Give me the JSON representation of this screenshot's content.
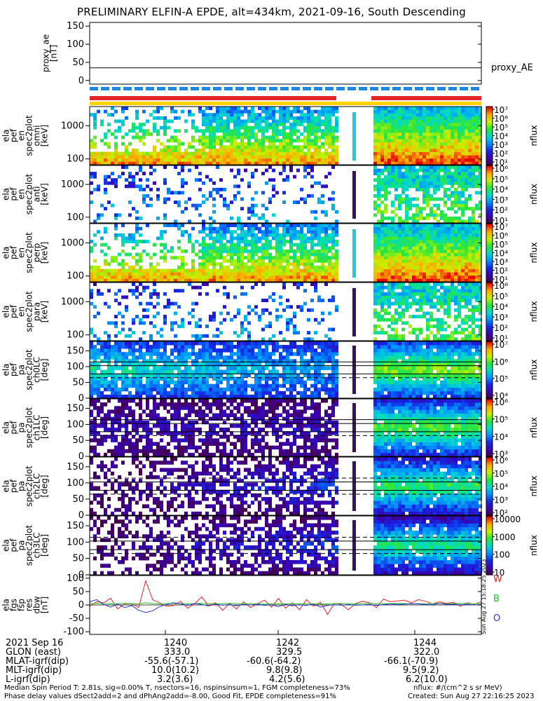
{
  "title": "PRELIMINARY ELFIN-A EPDE, alt=434km, 2021-09-16, South Descending",
  "chart_data": {
    "type": "heatmap",
    "panels": [
      {
        "label_lines": [
          "proxy_ae",
          "[nT]"
        ],
        "yticks": [
          "150",
          "100",
          "50",
          "0"
        ],
        "ylim": [
          -10,
          160
        ],
        "kind": "line",
        "series": [
          {
            "name": "proxy_AE",
            "value": 35
          }
        ],
        "series_label": "proxy_AE"
      },
      {
        "label_lines": [
          "ela",
          "pef",
          "en",
          "spec2plot",
          "omni",
          "[keV]"
        ],
        "yticks": [
          "1000",
          "100"
        ],
        "kind": "spec",
        "cbar": {
          "ticks": [
            "10⁷",
            "10⁶",
            "10⁵",
            "10⁴",
            "10³",
            "10²",
            "10¹"
          ],
          "label": "nflux"
        }
      },
      {
        "label_lines": [
          "ela",
          "pef",
          "en",
          "spec2plot",
          "anti",
          "[keV]"
        ],
        "yticks": [
          "1000",
          "100"
        ],
        "kind": "spec",
        "cbar": {
          "ticks": [
            "10⁶",
            "10⁵",
            "10⁴",
            "10³",
            "10²",
            "10¹"
          ],
          "label": "nflux"
        }
      },
      {
        "label_lines": [
          "ela",
          "pef",
          "en",
          "spec2plot",
          "perp",
          "[keV]"
        ],
        "yticks": [
          "1000",
          "100"
        ],
        "kind": "spec",
        "cbar": {
          "ticks": [
            "10⁷",
            "10⁶",
            "10⁵",
            "10⁴",
            "10³",
            "10²",
            "10¹"
          ],
          "label": "nflux"
        }
      },
      {
        "label_lines": [
          "ela",
          "pef",
          "en",
          "spec2plot",
          "para",
          "[keV]"
        ],
        "yticks": [
          "1000",
          "100"
        ],
        "kind": "spec",
        "cbar": {
          "ticks": [
            "10⁶",
            "10⁵",
            "10⁴",
            "10³",
            "10²",
            "10¹"
          ],
          "label": "nflux"
        }
      },
      {
        "label_lines": [
          "ela",
          "pef",
          "pa",
          "spec2plot",
          "ch0LC",
          "[deg]"
        ],
        "yticks": [
          "150",
          "100",
          "50",
          "0"
        ],
        "kind": "pa",
        "cbar": {
          "ticks": [
            "10⁷",
            "10⁶",
            "10⁵",
            "10⁴"
          ],
          "label": "nflux"
        }
      },
      {
        "label_lines": [
          "ela",
          "pef",
          "pa",
          "spec2plot",
          "ch1LC",
          "[deg]"
        ],
        "yticks": [
          "150",
          "100",
          "50",
          "0"
        ],
        "kind": "pa",
        "cbar": {
          "ticks": [
            "10⁶",
            "10⁵",
            "10⁴",
            "10³"
          ],
          "label": "nflux"
        }
      },
      {
        "label_lines": [
          "ela",
          "pef",
          "pa",
          "spec2plot",
          "ch2LC",
          "[deg]"
        ],
        "yticks": [
          "150",
          "100",
          "50",
          "0"
        ],
        "kind": "pa",
        "cbar": {
          "ticks": [
            "10⁶",
            "10⁵",
            "10⁴",
            "10³",
            "10²"
          ],
          "label": "nflux"
        }
      },
      {
        "label_lines": [
          "ela",
          "pef",
          "pa",
          "spec2plot",
          "ch3LC",
          "[deg]"
        ],
        "yticks": [
          "150",
          "100",
          "50",
          "0"
        ],
        "kind": "pa",
        "cbar": {
          "ticks": [
            "10000",
            "1000",
            "100",
            "10"
          ],
          "label": "nflux"
        }
      },
      {
        "label_lines": [
          "ela",
          "fgs",
          "fsp",
          "res",
          "dbw",
          "[nT]"
        ],
        "yticks": [
          "100",
          "50",
          "0",
          "-50",
          "-100"
        ],
        "ylim": [
          -110,
          110
        ],
        "kind": "mag",
        "legend": [
          {
            "name": "W",
            "color": "#e8252a"
          },
          {
            "name": "B",
            "color": "#1fc01f"
          },
          {
            "name": "O",
            "color": "#2438d8"
          }
        ],
        "series": [
          {
            "name": "W",
            "values": [
              -5,
              12,
              8,
              25,
              -15,
              4,
              5,
              -10,
              90,
              20,
              8,
              -5,
              -2,
              14,
              -12,
              4,
              30,
              -2,
              8,
              -20,
              6,
              -15,
              12,
              -10,
              5,
              18,
              -8,
              25,
              -12,
              8,
              -18,
              20,
              -5,
              10,
              -35,
              6,
              2,
              -18,
              5,
              14,
              8,
              -10,
              22,
              12,
              15,
              18,
              8,
              20,
              14,
              4,
              12,
              6,
              10,
              -5,
              8,
              2,
              12
            ]
          },
          {
            "name": "B",
            "values": [
              5,
              6,
              4,
              5,
              4,
              6,
              5,
              4,
              8,
              5,
              4,
              5,
              6,
              5,
              4,
              5,
              6,
              5,
              4,
              5,
              6,
              5,
              4,
              5,
              4,
              3,
              4,
              5,
              4,
              5,
              4,
              5,
              4,
              3,
              4,
              5,
              6,
              5,
              4,
              5,
              6,
              5,
              4,
              5,
              6,
              5,
              4,
              5,
              4,
              5,
              6,
              4,
              5,
              6,
              5,
              4,
              5
            ]
          },
          {
            "name": "O",
            "values": [
              12,
              20,
              2,
              -8,
              4,
              -10,
              -2,
              -20,
              -28,
              -22,
              -6,
              2,
              8,
              4,
              -2,
              6,
              2,
              -4,
              3,
              -1,
              2,
              -3,
              2,
              0,
              3,
              -2,
              1,
              -6,
              2,
              -3,
              1,
              -2,
              4,
              -8,
              -2,
              1,
              -1,
              2,
              -1,
              0,
              2,
              -2,
              1,
              4,
              2,
              3,
              5,
              4,
              2,
              1,
              6,
              2,
              3,
              1,
              2,
              0,
              1
            ]
          }
        ]
      }
    ],
    "xlabel_ticks": [
      "1240",
      "1242",
      "1244"
    ],
    "annotations": [
      "nflux: #/(cm^2 s sr MeV)"
    ]
  },
  "side_stamp": "Sun Aug 27 15:18:25 2023",
  "table": {
    "labels": [
      "2021 Sep 16",
      "GLON (east)",
      "MLAT-igrf(dip)",
      "MLT-igrf(dip)",
      "L-igrf(dip)"
    ],
    "columns": [
      [
        "1240",
        "333.0",
        "-55.6(-57.1)",
        "10.0(10.2)",
        "3.2(3.6)"
      ],
      [
        "1242",
        "329.5",
        "-60.6(-64.2)",
        "9.8(9.8)",
        "4.2(5.6)"
      ],
      [
        "1244",
        "322.0",
        "-66.1(-70.9)",
        "9.5(9.2)",
        "6.2(10.0)"
      ]
    ]
  },
  "footer": {
    "line1_left": "Median Spin Period T: 2.81s, sig=0.00% T, nsectors=16, nspinsinsum=1, FGM completeness=73%",
    "line2_left": "Phase delay values dSect2add=2 and dPhAng2add=-8.00, Good Fit, EPDE completeness=91%",
    "line1_right": "nflux: #/(cm^2 s sr MeV)",
    "line2_right": "Created: Sun Aug 27 22:16:25 2023"
  }
}
